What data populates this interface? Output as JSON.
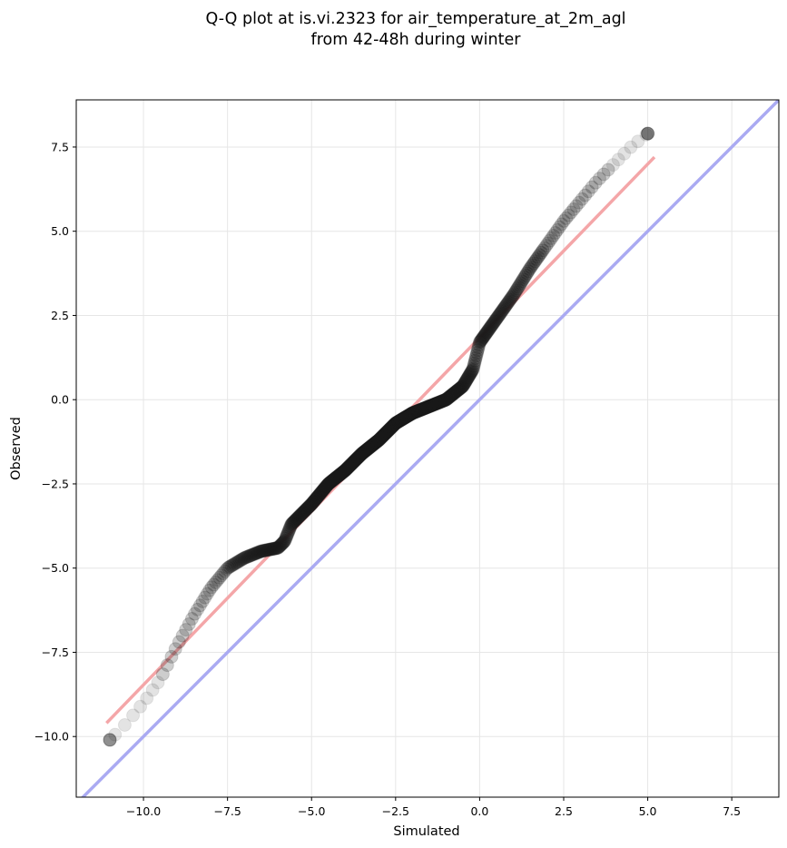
{
  "chart_data": {
    "type": "scatter",
    "title_line1": "Q-Q plot at is.vi.2323 for air_temperature_at_2m_agl",
    "title_line2": "from 42-48h during winter",
    "xlabel": "Simulated",
    "ylabel": "Observed",
    "xlim": [
      -12.0,
      8.9
    ],
    "ylim": [
      -11.8,
      8.9
    ],
    "xticks": [
      -10.0,
      -7.5,
      -5.0,
      -2.5,
      0.0,
      2.5,
      5.0,
      7.5
    ],
    "xtick_labels": [
      "−10.0",
      "−7.5",
      "−5.0",
      "−2.5",
      "0.0",
      "2.5",
      "5.0",
      "7.5"
    ],
    "yticks": [
      -10.0,
      -7.5,
      -5.0,
      -2.5,
      0.0,
      2.5,
      5.0,
      7.5
    ],
    "ytick_labels": [
      "−10.0",
      "−7.5",
      "−5.0",
      "−2.5",
      "0.0",
      "2.5",
      "5.0",
      "7.5"
    ],
    "grid": true,
    "quantile_curve": {
      "x": [
        -11.0,
        -10.5,
        -10.0,
        -9.5,
        -9.0,
        -8.5,
        -8.0,
        -7.5,
        -7.0,
        -6.5,
        -6.0,
        -5.8,
        -5.6,
        -5.3,
        -5.0,
        -4.5,
        -4.0,
        -3.5,
        -3.0,
        -2.5,
        -2.0,
        -1.5,
        -1.0,
        -0.5,
        -0.2,
        0.0,
        0.5,
        1.0,
        1.5,
        2.0,
        2.5,
        3.0,
        3.5,
        4.0,
        4.5,
        5.0
      ],
      "y": [
        -10.1,
        -9.6,
        -9.0,
        -8.3,
        -7.3,
        -6.4,
        -5.6,
        -5.0,
        -4.7,
        -4.5,
        -4.4,
        -4.2,
        -3.7,
        -3.4,
        -3.1,
        -2.5,
        -2.1,
        -1.6,
        -1.2,
        -0.7,
        -0.4,
        -0.2,
        0.0,
        0.4,
        0.9,
        1.7,
        2.4,
        3.1,
        3.9,
        4.6,
        5.3,
        5.9,
        6.5,
        7.0,
        7.5,
        7.9
      ]
    },
    "reference_lines": [
      {
        "role": "fit",
        "color": "#f4a6a8",
        "x": [
          -11.1,
          5.2
        ],
        "y": [
          -9.6,
          7.2
        ]
      },
      {
        "role": "identity",
        "color": "#aaaaf2",
        "x": [
          -12.0,
          8.9
        ],
        "y": [
          -12.0,
          8.9
        ]
      }
    ],
    "marker_color": "#1a1a1a"
  }
}
